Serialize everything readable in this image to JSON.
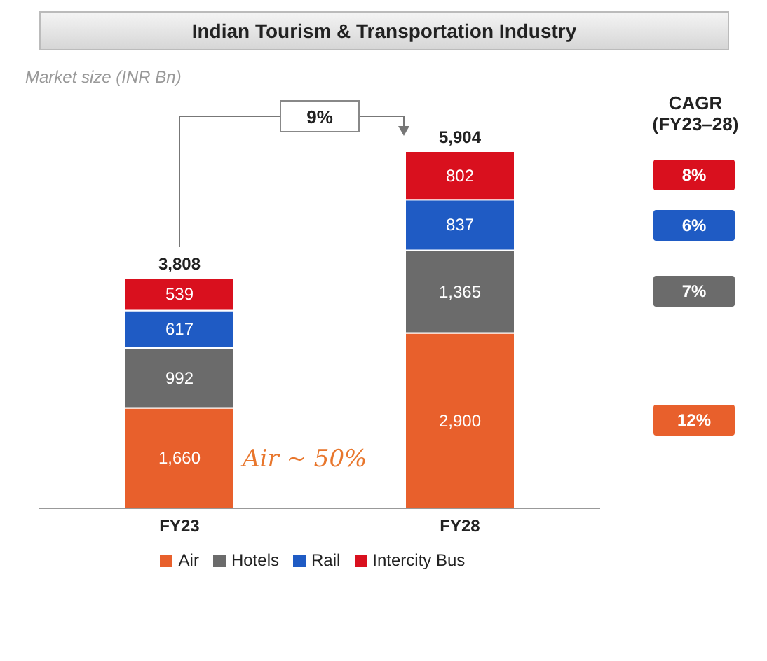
{
  "chart_data": {
    "type": "bar",
    "stacked": true,
    "title": "Indian Tourism & Transportation Industry",
    "subtitle": "Market size (INR Bn)",
    "categories": [
      "FY23",
      "FY28"
    ],
    "series": [
      {
        "name": "Air",
        "color": "#e8602c",
        "values": [
          1660,
          2900
        ],
        "value_labels": [
          "1,660",
          "2,900"
        ]
      },
      {
        "name": "Hotels",
        "color": "#6b6b6b",
        "values": [
          992,
          1365
        ],
        "value_labels": [
          "992",
          "1,365"
        ]
      },
      {
        "name": "Rail",
        "color": "#1f5bc4",
        "values": [
          617,
          837
        ],
        "value_labels": [
          "617",
          "837"
        ]
      },
      {
        "name": "Intercity Bus",
        "color": "#d9101e",
        "values": [
          539,
          802
        ],
        "value_labels": [
          "539",
          "802"
        ]
      }
    ],
    "totals": [
      "3,808",
      "5,904"
    ],
    "annotations": [
      "9%",
      "CAGR (FY23–28)",
      "8%",
      "6%",
      "7%",
      "12%",
      "Air ~ 50%"
    ],
    "legend": "bottom",
    "grid": false
  }
}
